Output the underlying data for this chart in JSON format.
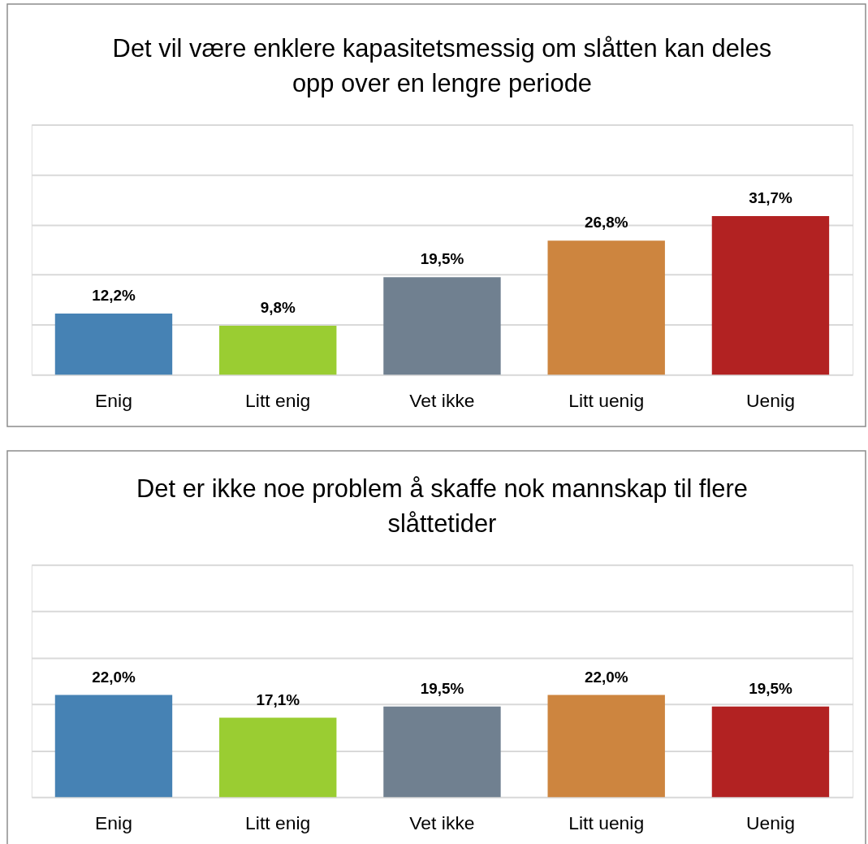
{
  "chart_data": [
    {
      "type": "bar",
      "title": "Det vil være enklere kapasitetsmessig om slåtten kan deles opp over en lengre periode",
      "categories": [
        "Enig",
        "Litt enig",
        "Vet ikke",
        "Litt uenig",
        "Uenig"
      ],
      "values": [
        12.2,
        9.8,
        19.5,
        26.8,
        31.7
      ],
      "colors": [
        "#4682b4",
        "#9acd32",
        "#708090",
        "#cd853f",
        "#b22222"
      ],
      "value_labels": [
        "12,2%",
        "9,8%",
        "19,5%",
        "26,8%",
        "31,7%"
      ],
      "ylim": [
        0,
        50
      ],
      "yticks": [
        {
          "value": 0,
          "label": null
        },
        {
          "value": 10,
          "label": null
        },
        {
          "value": 20,
          "label": null
        },
        {
          "value": 30,
          "label": null
        },
        {
          "value": 40,
          "label": null
        },
        {
          "value": 50,
          "label": null
        }
      ],
      "grid": "y",
      "tick_labels": "x"
    },
    {
      "type": "bar",
      "title": "Det er ikke noe problem å skaffe nok mannskap til flere slåttetider",
      "categories": [
        "Enig",
        "Litt enig",
        "Vet ikke",
        "Litt uenig",
        "Uenig"
      ],
      "values": [
        22.0,
        17.1,
        19.5,
        22.0,
        19.5
      ],
      "colors": [
        "#4682b4",
        "#9acd32",
        "#708090",
        "#cd853f",
        "#b22222"
      ],
      "value_labels": [
        "22,0%",
        "17,1%",
        "19,5%",
        "22,0%",
        "19,5%"
      ],
      "ylim": [
        0,
        50
      ],
      "yticks": [
        {
          "value": 0,
          "label": null
        },
        {
          "value": 10,
          "label": null
        },
        {
          "value": 20,
          "label": null
        },
        {
          "value": 30,
          "label": null
        },
        {
          "value": 40,
          "label": null
        },
        {
          "value": 50,
          "label": null
        }
      ],
      "grid": "y",
      "tick_labels": "x"
    }
  ]
}
